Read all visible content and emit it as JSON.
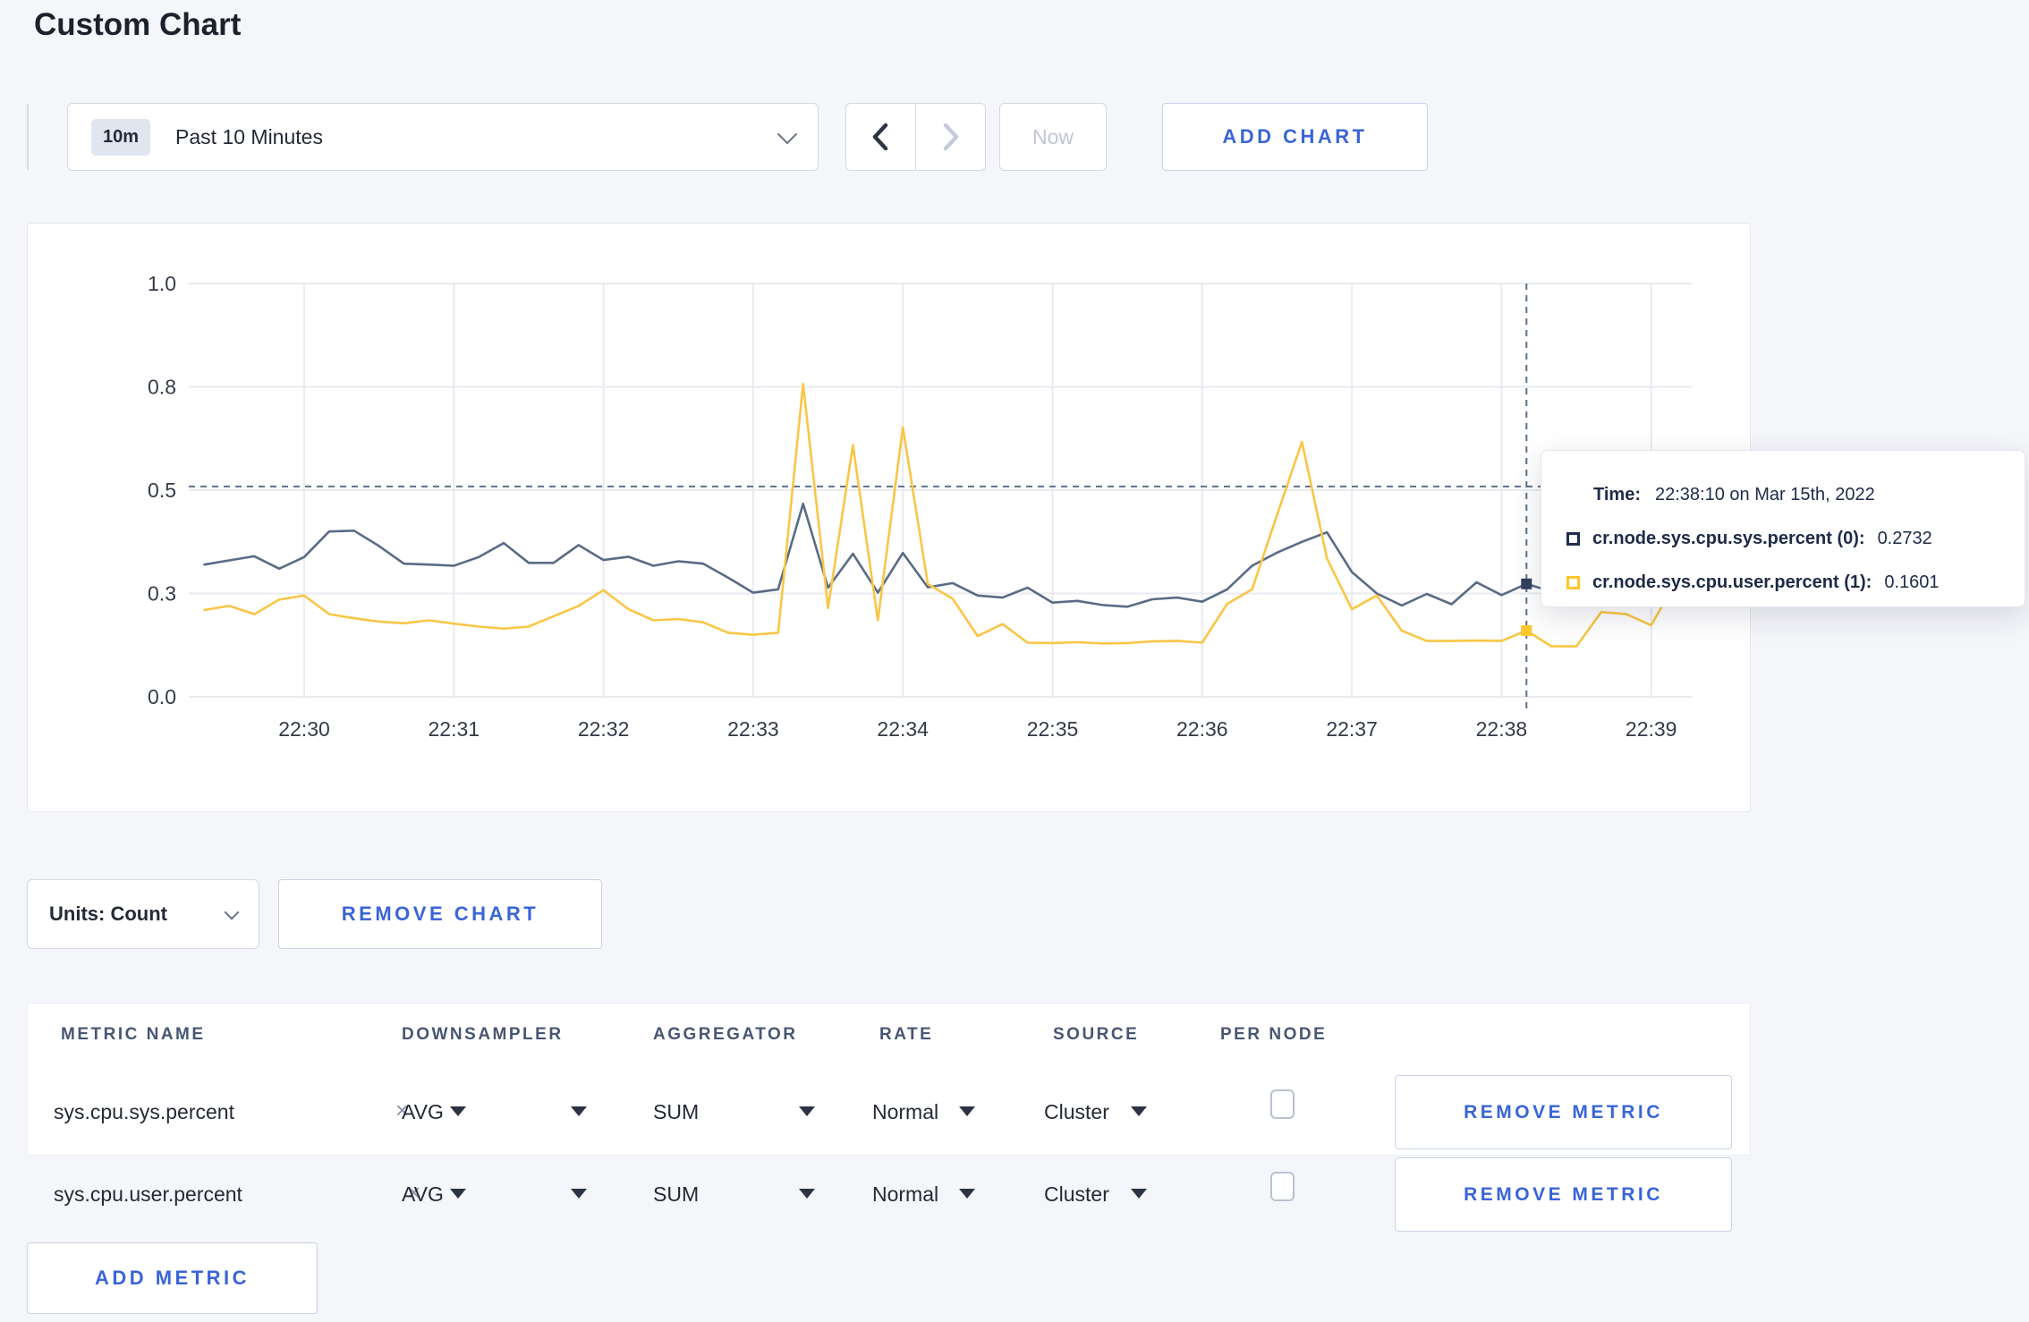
{
  "page": {
    "title": "Custom Chart",
    "background": "#f5f6fa"
  },
  "toolbar": {
    "time_range": {
      "badge": "10m",
      "label": "Past 10 Minutes"
    },
    "now_label": "Now",
    "add_chart_label": "ADD CHART"
  },
  "chart": {
    "hover": {
      "time": "22:38:10",
      "hline_value": 0.509,
      "point_values": [
        0.2732,
        0.1601
      ]
    },
    "tooltip": {
      "time_label": "Time:",
      "time_value": "22:38:10 on Mar 15th, 2022",
      "rows": [
        {
          "name": "cr.node.sys.cpu.sys.percent (0):",
          "value": "0.2732",
          "swatch": "#1d2c4e"
        },
        {
          "name": "cr.node.sys.cpu.user.percent (1):",
          "value": "0.1601",
          "swatch": "#ffc72e"
        }
      ]
    }
  },
  "chart_data": {
    "type": "line",
    "title": "",
    "xlabel": "",
    "ylabel": "",
    "ylim": [
      0,
      1
    ],
    "grid": true,
    "legend_position": "tooltip",
    "yticks": [
      {
        "v": 0.0,
        "label": "0.0"
      },
      {
        "v": 0.25,
        "label": "0.3"
      },
      {
        "v": 0.5,
        "label": "0.5"
      },
      {
        "v": 0.75,
        "label": "0.8"
      },
      {
        "v": 1.0,
        "label": "1.0"
      }
    ],
    "xticks": [
      "22:30",
      "22:31",
      "22:32",
      "22:33",
      "22:34",
      "22:35",
      "22:36",
      "22:37",
      "22:38",
      "22:39"
    ],
    "x": [
      "22:29:20",
      "22:29:30",
      "22:29:40",
      "22:29:50",
      "22:30:00",
      "22:30:10",
      "22:30:20",
      "22:30:30",
      "22:30:40",
      "22:30:50",
      "22:31:00",
      "22:31:10",
      "22:31:20",
      "22:31:30",
      "22:31:40",
      "22:31:50",
      "22:32:00",
      "22:32:10",
      "22:32:20",
      "22:32:30",
      "22:32:40",
      "22:32:50",
      "22:33:00",
      "22:33:10",
      "22:33:20",
      "22:33:30",
      "22:33:40",
      "22:33:50",
      "22:34:00",
      "22:34:10",
      "22:34:20",
      "22:34:30",
      "22:34:40",
      "22:34:50",
      "22:35:00",
      "22:35:10",
      "22:35:20",
      "22:35:30",
      "22:35:40",
      "22:35:50",
      "22:36:00",
      "22:36:10",
      "22:36:20",
      "22:36:30",
      "22:36:40",
      "22:36:50",
      "22:37:00",
      "22:37:10",
      "22:37:20",
      "22:37:30",
      "22:37:40",
      "22:37:50",
      "22:38:00",
      "22:38:10",
      "22:38:20",
      "22:38:30",
      "22:38:40",
      "22:38:50",
      "22:39:00",
      "22:39:10"
    ],
    "series": [
      {
        "name": "cr.node.sys.cpu.sys.percent",
        "color": "#5a6b85",
        "dot_color": "#33415f",
        "values": [
          0.32,
          0.33,
          0.34,
          0.31,
          0.338,
          0.4,
          0.402,
          0.365,
          0.322,
          0.32,
          0.317,
          0.338,
          0.372,
          0.324,
          0.324,
          0.367,
          0.331,
          0.339,
          0.317,
          0.328,
          0.322,
          0.288,
          0.252,
          0.26,
          0.467,
          0.264,
          0.346,
          0.252,
          0.348,
          0.265,
          0.275,
          0.245,
          0.24,
          0.264,
          0.228,
          0.232,
          0.222,
          0.218,
          0.236,
          0.24,
          0.23,
          0.26,
          0.317,
          0.349,
          0.375,
          0.398,
          0.302,
          0.25,
          0.221,
          0.249,
          0.224,
          0.277,
          0.246,
          0.2732,
          0.255,
          0.262,
          0.27,
          0.26,
          0.268,
          0.28
        ]
      },
      {
        "name": "cr.node.sys.cpu.user.percent",
        "color": "#f9c646",
        "dot_color": "#ffc72e",
        "values": [
          0.21,
          0.22,
          0.2,
          0.235,
          0.245,
          0.2,
          0.19,
          0.182,
          0.178,
          0.185,
          0.177,
          0.17,
          0.165,
          0.17,
          0.195,
          0.22,
          0.258,
          0.212,
          0.185,
          0.188,
          0.18,
          0.155,
          0.15,
          0.155,
          0.757,
          0.215,
          0.609,
          0.185,
          0.652,
          0.273,
          0.237,
          0.147,
          0.176,
          0.131,
          0.13,
          0.132,
          0.129,
          0.13,
          0.134,
          0.135,
          0.131,
          0.225,
          0.26,
          0.44,
          0.617,
          0.335,
          0.212,
          0.245,
          0.16,
          0.135,
          0.135,
          0.136,
          0.135,
          0.1601,
          0.122,
          0.122,
          0.205,
          0.2,
          0.173,
          0.28
        ]
      }
    ]
  },
  "units": {
    "label": "Units: Count"
  },
  "remove_chart_label": "REMOVE CHART",
  "metrics_table": {
    "headers": [
      "METRIC NAME",
      "DOWNSAMPLER",
      "AGGREGATOR",
      "RATE",
      "SOURCE",
      "PER NODE"
    ],
    "clear_icon": "×",
    "remove_metric_label": "REMOVE METRIC",
    "add_metric_label": "ADD METRIC",
    "rows": [
      {
        "metric": "sys.cpu.sys.percent",
        "downsampler": "AVG",
        "aggregator": "SUM",
        "rate": "Normal",
        "source": "Cluster",
        "per_node": false
      },
      {
        "metric": "sys.cpu.user.percent",
        "downsampler": "AVG",
        "aggregator": "SUM",
        "rate": "Normal",
        "source": "Cluster",
        "per_node": false
      }
    ]
  }
}
